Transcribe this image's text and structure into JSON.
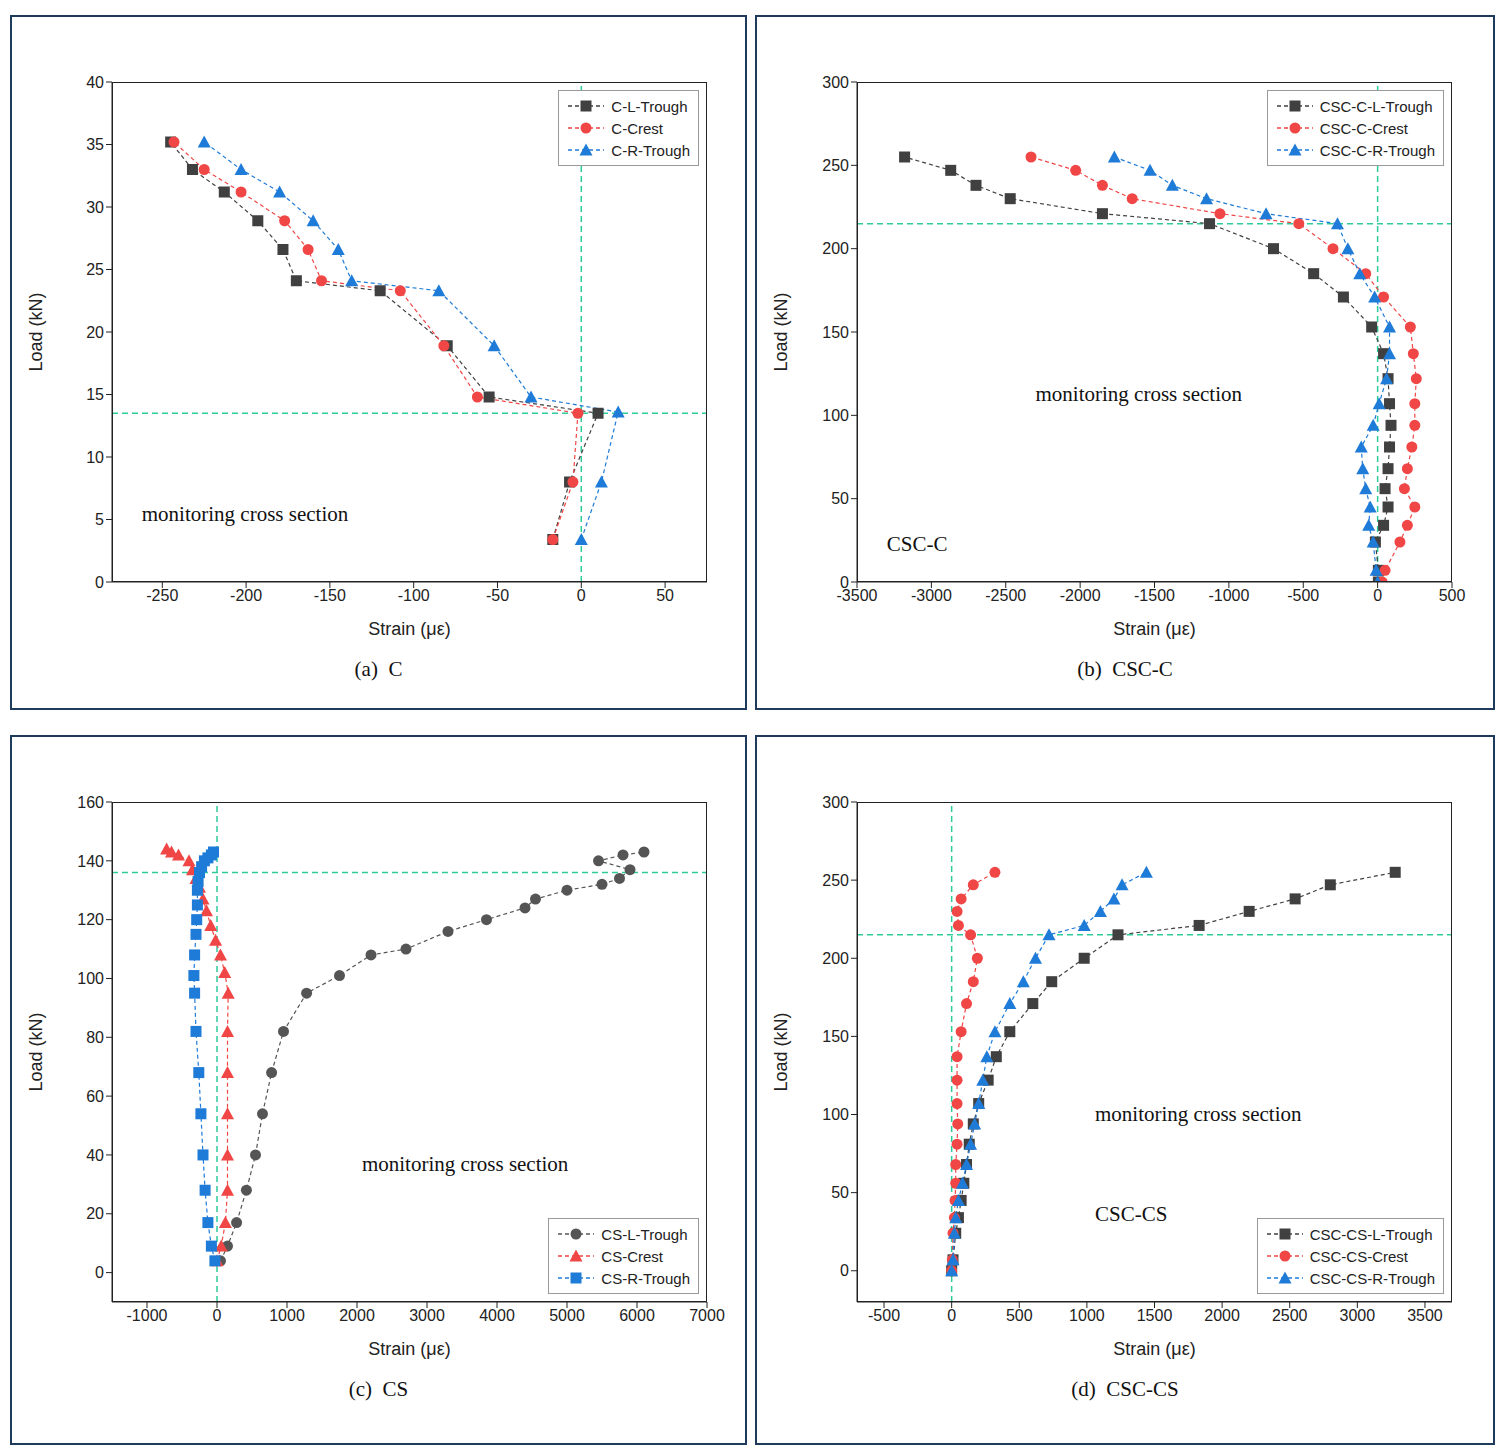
{
  "chart_data": [
    {
      "type": "line",
      "title": "(a)  C",
      "x_label": "Strain (με)",
      "y_label": "Load (kN)",
      "xlim": [
        -280,
        75
      ],
      "xticks": [
        -250,
        -200,
        -150,
        -100,
        -50,
        0,
        50
      ],
      "ylim": [
        0,
        40
      ],
      "yticks": [
        0,
        5,
        10,
        15,
        20,
        25,
        30,
        35,
        40
      ],
      "legend": "upper right",
      "reference_lines": {
        "x": 0,
        "y": 13.5
      },
      "annotations": [
        "monitoring cross section"
      ],
      "series": [
        {
          "name": "C-L-Trough",
          "color": "#404040",
          "marker": "square",
          "line_style": "dashed",
          "x": [
            -17,
            -7,
            10,
            -55,
            -80,
            -120,
            -170,
            -178,
            -193,
            -213,
            -232,
            -245
          ],
          "values": [
            3.4,
            8,
            13.5,
            14.8,
            18.9,
            23.3,
            24.1,
            26.6,
            28.9,
            31.2,
            33,
            35.2
          ]
        },
        {
          "name": "C-Crest",
          "color": "#f04646",
          "marker": "circle",
          "line_style": "dashed",
          "x": [
            -17,
            -5,
            -2,
            -62,
            -82,
            -108,
            -155,
            -163,
            -177,
            -203,
            -225,
            -243
          ],
          "values": [
            3.4,
            8,
            13.5,
            14.8,
            18.9,
            23.3,
            24.1,
            26.6,
            28.9,
            31.2,
            33,
            35.2
          ]
        },
        {
          "name": "C-R-Trough",
          "color": "#1f7bd8",
          "marker": "triangle",
          "line_style": "dashed",
          "x": [
            0,
            12,
            22,
            -30,
            -52,
            -85,
            -137,
            -145,
            -160,
            -180,
            -203,
            -225
          ],
          "values": [
            3.4,
            8,
            13.6,
            14.8,
            18.9,
            23.3,
            24.1,
            26.6,
            28.9,
            31.2,
            33,
            35.2
          ]
        }
      ]
    },
    {
      "type": "line",
      "title": "(b)  CSC-C",
      "x_label": "Strain (με)",
      "y_label": "Load (kN)",
      "xlim": [
        -3500,
        500
      ],
      "xticks": [
        -3500,
        -3000,
        -2500,
        -2000,
        -1500,
        -1000,
        -500,
        0,
        500
      ],
      "ylim": [
        0,
        300
      ],
      "yticks": [
        0,
        50,
        100,
        150,
        200,
        250,
        300
      ],
      "legend": "upper right",
      "reference_lines": {
        "x": 0,
        "y": 215
      },
      "annotations": [
        "monitoring cross section",
        "CSC-C"
      ],
      "series": [
        {
          "name": "CSC-C-L-Trough",
          "color": "#404040",
          "marker": "square",
          "line_style": "dashed",
          "x": [
            5,
            5,
            -15,
            40,
            70,
            50,
            70,
            80,
            90,
            80,
            70,
            40,
            -40,
            -230,
            -430,
            -700,
            -1130,
            -1850,
            -2470,
            -2700,
            -2870,
            -3180
          ],
          "values": [
            0,
            7,
            24,
            34,
            45,
            56,
            68,
            81,
            94,
            107,
            122,
            137,
            153,
            171,
            185,
            200,
            215,
            221,
            230,
            238,
            247,
            255
          ]
        },
        {
          "name": "CSC-C-Crest",
          "color": "#f04646",
          "marker": "circle",
          "line_style": "dashed",
          "x": [
            30,
            50,
            150,
            200,
            250,
            180,
            200,
            230,
            250,
            250,
            260,
            240,
            220,
            40,
            -80,
            -300,
            -530,
            -1060,
            -1650,
            -1850,
            -2030,
            -2330
          ],
          "values": [
            0,
            7,
            24,
            34,
            45,
            56,
            68,
            81,
            94,
            107,
            122,
            137,
            153,
            171,
            185,
            200,
            215,
            221,
            230,
            238,
            247,
            255
          ]
        },
        {
          "name": "CSC-C-R-Trough",
          "color": "#1f7bd8",
          "marker": "triangle",
          "line_style": "dashed",
          "x": [
            0,
            -10,
            -30,
            -60,
            -50,
            -80,
            -100,
            -110,
            -30,
            10,
            60,
            80,
            80,
            -20,
            -120,
            -200,
            -270,
            -750,
            -1150,
            -1380,
            -1530,
            -1770
          ],
          "values": [
            0,
            7,
            24,
            34,
            45,
            56,
            68,
            81,
            94,
            107,
            122,
            137,
            153,
            171,
            185,
            200,
            215,
            221,
            230,
            238,
            247,
            255
          ]
        }
      ]
    },
    {
      "type": "line",
      "title": "(c)  CS",
      "x_label": "Strain (με)",
      "y_label": "Load (kN)",
      "xlim": [
        -1500,
        7000
      ],
      "xticks": [
        -1000,
        0,
        1000,
        2000,
        3000,
        4000,
        5000,
        6000,
        7000
      ],
      "ylim": [
        -10,
        160
      ],
      "yticks": [
        0,
        20,
        40,
        60,
        80,
        100,
        120,
        140,
        160
      ],
      "legend": "lower right",
      "reference_lines": {
        "x": 0,
        "y": 136
      },
      "annotations": [
        "monitoring cross section"
      ],
      "series": [
        {
          "name": "CS-L-Trough",
          "color": "#555555",
          "marker": "circle",
          "line_style": "dashed",
          "x": [
            50,
            150,
            280,
            420,
            550,
            650,
            780,
            950,
            1280,
            1750,
            2200,
            2700,
            3300,
            3850,
            4400,
            4550,
            5000,
            5500,
            5750,
            5900,
            5450,
            5800,
            6100
          ],
          "values": [
            4,
            9,
            17,
            28,
            40,
            54,
            68,
            82,
            95,
            101,
            108,
            110,
            116,
            120,
            124,
            127,
            130,
            132,
            134,
            137,
            140,
            142,
            143
          ]
        },
        {
          "name": "CS-Crest",
          "color": "#f04646",
          "marker": "triangle",
          "line_style": "dashed",
          "x": [
            0,
            60,
            120,
            150,
            150,
            150,
            150,
            150,
            160,
            110,
            50,
            -20,
            -90,
            -150,
            -200,
            -250,
            -300,
            -350,
            -400,
            -550,
            -650,
            -720
          ],
          "values": [
            4,
            9,
            17,
            28,
            40,
            54,
            68,
            82,
            95,
            102,
            108,
            113,
            118,
            123,
            127,
            131,
            134,
            137,
            140,
            142,
            143,
            144
          ]
        },
        {
          "name": "CS-R-Trough",
          "color": "#1f7bd8",
          "marker": "square",
          "line_style": "dashed",
          "x": [
            -30,
            -80,
            -130,
            -170,
            -200,
            -230,
            -260,
            -300,
            -320,
            -330,
            -320,
            -300,
            -290,
            -280,
            -280,
            -270,
            -250,
            -220,
            -180,
            -130,
            -80,
            -50
          ],
          "values": [
            4,
            9,
            17,
            28,
            40,
            54,
            68,
            82,
            95,
            101,
            108,
            115,
            120,
            125,
            130,
            133,
            136,
            138,
            140,
            141,
            142,
            143
          ]
        }
      ]
    },
    {
      "type": "line",
      "title": "(d)  CSC-CS",
      "x_label": "Strain (με)",
      "y_label": "Load (kN)",
      "xlim": [
        -700,
        3700
      ],
      "xticks": [
        -500,
        0,
        500,
        1000,
        1500,
        2000,
        2500,
        3000,
        3500
      ],
      "ylim": [
        -20,
        300
      ],
      "yticks": [
        0,
        50,
        100,
        150,
        200,
        250,
        300
      ],
      "legend": "lower right",
      "reference_lines": {
        "x": 0,
        "y": 215
      },
      "annotations": [
        "monitoring cross section",
        "CSC-CS"
      ],
      "series": [
        {
          "name": "CSC-CS-L-Trough",
          "color": "#404040",
          "marker": "square",
          "line_style": "dashed",
          "x": [
            0,
            10,
            30,
            50,
            70,
            90,
            110,
            130,
            160,
            200,
            270,
            330,
            430,
            600,
            740,
            980,
            1230,
            1830,
            2200,
            2540,
            2800,
            3280
          ],
          "values": [
            0,
            7,
            24,
            34,
            45,
            56,
            68,
            81,
            94,
            107,
            122,
            137,
            153,
            171,
            185,
            200,
            215,
            221,
            230,
            238,
            247,
            255
          ]
        },
        {
          "name": "CSC-CS-Crest",
          "color": "#f04646",
          "marker": "circle",
          "line_style": "dashed",
          "x": [
            0,
            5,
            10,
            20,
            25,
            30,
            30,
            40,
            45,
            40,
            40,
            40,
            70,
            110,
            160,
            190,
            140,
            50,
            40,
            70,
            160,
            320
          ],
          "values": [
            0,
            7,
            24,
            34,
            45,
            56,
            68,
            81,
            94,
            107,
            122,
            137,
            153,
            171,
            185,
            200,
            215,
            221,
            230,
            238,
            247,
            255
          ]
        },
        {
          "name": "CSC-CS-R-Trough",
          "color": "#1f7bd8",
          "marker": "triangle",
          "line_style": "dashed",
          "x": [
            0,
            10,
            20,
            30,
            50,
            80,
            110,
            140,
            170,
            200,
            230,
            260,
            320,
            430,
            530,
            620,
            720,
            980,
            1100,
            1200,
            1260,
            1440
          ],
          "values": [
            0,
            7,
            24,
            34,
            45,
            56,
            68,
            81,
            94,
            107,
            122,
            137,
            153,
            171,
            185,
            200,
            215,
            221,
            230,
            238,
            247,
            255
          ]
        }
      ]
    }
  ]
}
